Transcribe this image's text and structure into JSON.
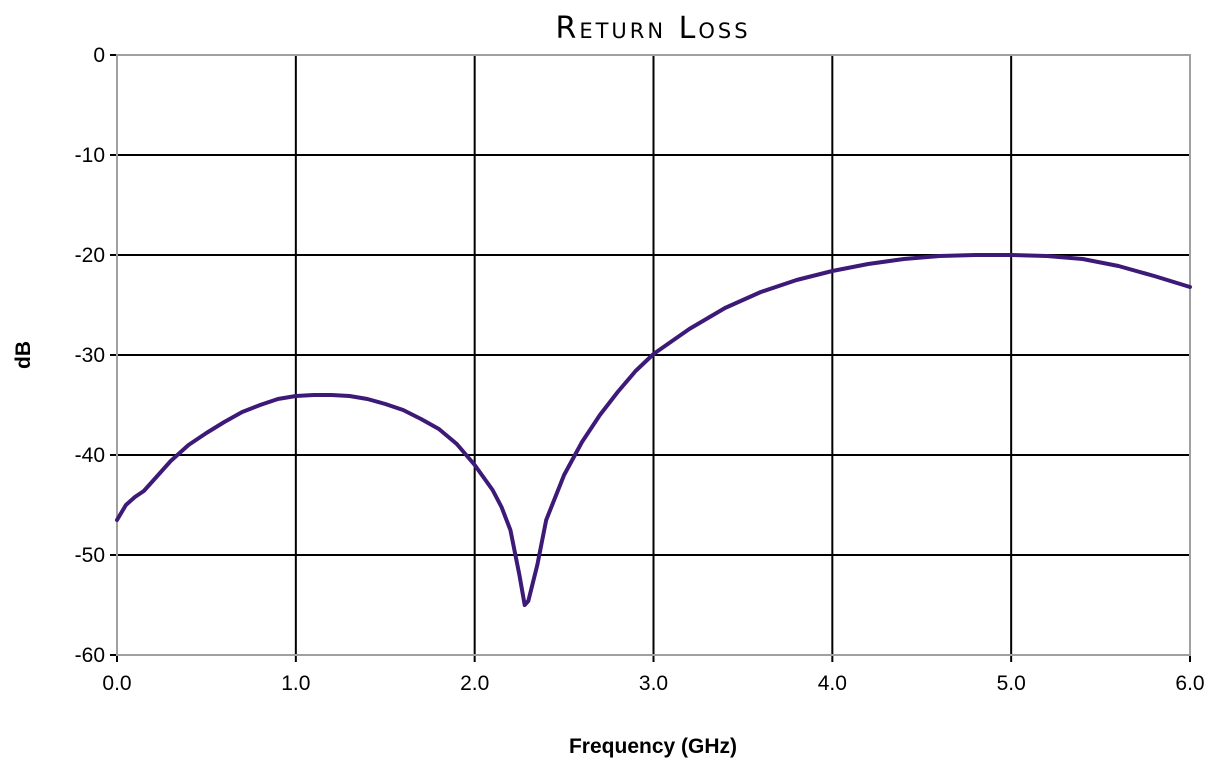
{
  "chart_data": {
    "type": "line",
    "title": "Return Loss",
    "xlabel": "Frequency (GHz)",
    "ylabel": "dB",
    "xlim": [
      0,
      6
    ],
    "ylim": [
      -60,
      0
    ],
    "x_ticks": [
      "0.0",
      "1.0",
      "2.0",
      "3.0",
      "4.0",
      "5.0",
      "6.0"
    ],
    "y_ticks": [
      "0",
      "-10",
      "-20",
      "-30",
      "-40",
      "-50",
      "-60"
    ],
    "grid": true,
    "legend": "none",
    "series": [
      {
        "color": "#3d1a78",
        "points": [
          [
            0.0,
            -46.5
          ],
          [
            0.05,
            -45.0
          ],
          [
            0.1,
            -44.2
          ],
          [
            0.15,
            -43.6
          ],
          [
            0.2,
            -42.6
          ],
          [
            0.3,
            -40.6
          ],
          [
            0.4,
            -39.0
          ],
          [
            0.5,
            -37.8
          ],
          [
            0.6,
            -36.7
          ],
          [
            0.7,
            -35.7
          ],
          [
            0.8,
            -35.0
          ],
          [
            0.9,
            -34.4
          ],
          [
            1.0,
            -34.1
          ],
          [
            1.1,
            -34.0
          ],
          [
            1.2,
            -34.0
          ],
          [
            1.3,
            -34.1
          ],
          [
            1.4,
            -34.4
          ],
          [
            1.5,
            -34.9
          ],
          [
            1.6,
            -35.5
          ],
          [
            1.7,
            -36.4
          ],
          [
            1.8,
            -37.4
          ],
          [
            1.9,
            -38.9
          ],
          [
            2.0,
            -41.0
          ],
          [
            2.1,
            -43.5
          ],
          [
            2.15,
            -45.2
          ],
          [
            2.2,
            -47.5
          ],
          [
            2.25,
            -52.0
          ],
          [
            2.28,
            -55.0
          ],
          [
            2.3,
            -54.6
          ],
          [
            2.35,
            -51.0
          ],
          [
            2.4,
            -46.5
          ],
          [
            2.5,
            -42.0
          ],
          [
            2.6,
            -38.7
          ],
          [
            2.7,
            -36.0
          ],
          [
            2.8,
            -33.7
          ],
          [
            2.9,
            -31.6
          ],
          [
            3.0,
            -29.9
          ],
          [
            3.2,
            -27.4
          ],
          [
            3.4,
            -25.3
          ],
          [
            3.6,
            -23.7
          ],
          [
            3.8,
            -22.5
          ],
          [
            4.0,
            -21.6
          ],
          [
            4.2,
            -20.9
          ],
          [
            4.4,
            -20.4
          ],
          [
            4.6,
            -20.1
          ],
          [
            4.8,
            -20.0
          ],
          [
            5.0,
            -20.0
          ],
          [
            5.2,
            -20.1
          ],
          [
            5.4,
            -20.4
          ],
          [
            5.6,
            -21.1
          ],
          [
            5.8,
            -22.1
          ],
          [
            6.0,
            -23.2
          ]
        ]
      }
    ]
  }
}
